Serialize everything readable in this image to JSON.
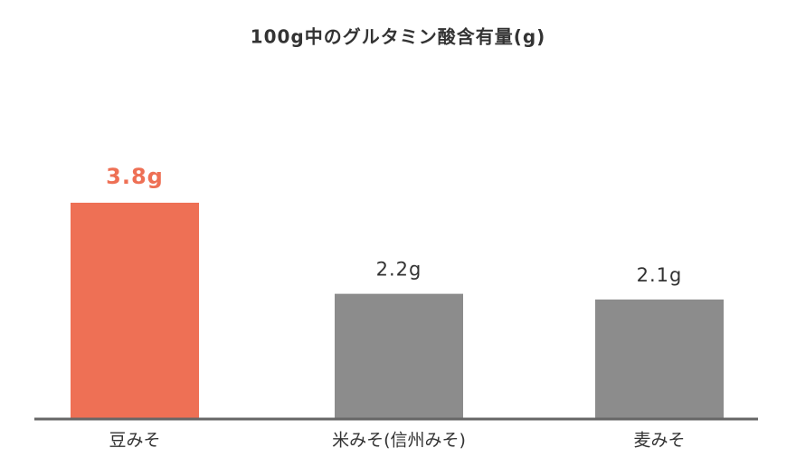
{
  "chart_data": {
    "type": "bar",
    "title": "100g中のグルタミン酸含有量(g)",
    "categories": [
      "豆みそ",
      "米みそ(信州みそ)",
      "麦みそ"
    ],
    "values": [
      3.8,
      2.2,
      2.1
    ],
    "value_labels": [
      "3.8g",
      "2.2g",
      "2.1g"
    ],
    "colors": [
      "#ee7055",
      "#8c8c8c",
      "#8c8c8c"
    ]
  }
}
